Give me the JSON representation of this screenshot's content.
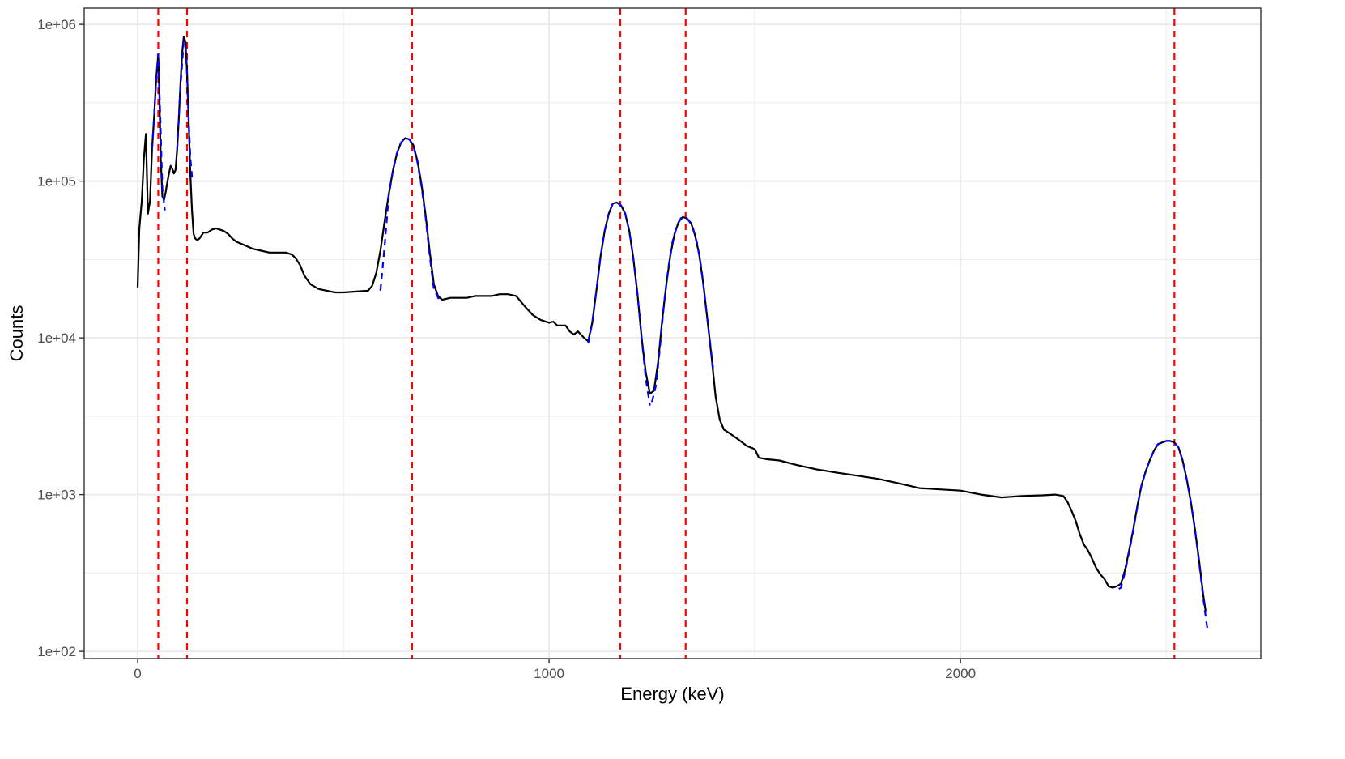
{
  "chart_data": {
    "type": "line",
    "title": "",
    "xlabel": "Energy (keV)",
    "ylabel": "Counts",
    "xlim": [
      -130,
      2730
    ],
    "ylim": [
      90,
      1270000
    ],
    "y_scale": "log10",
    "grid": true,
    "legend": "none",
    "x_ticks": [
      0,
      1000,
      2000
    ],
    "x_tick_labels": [
      "0",
      "1000",
      "2000"
    ],
    "x_minor_ticks": [
      500,
      1500,
      2500
    ],
    "y_ticks": [
      100,
      1000,
      10000,
      100000,
      1000000
    ],
    "y_tick_labels": [
      "1e+02",
      "1e+03",
      "1e+04",
      "1e+05",
      "1e+06"
    ],
    "y_minor_ticks": [
      316.2,
      3162,
      31620,
      316200
    ],
    "colors": {
      "spectrum": "#000000",
      "fits": "#0000ff",
      "peak_lines": "#ff0000",
      "grid": "#ebebeb",
      "panel_border": "#333333"
    },
    "peak_lines": [
      50,
      120,
      667,
      1173,
      1332,
      2520
    ],
    "series": [
      {
        "role": "spectrum",
        "style": "solid",
        "points": [
          [
            0,
            21000
          ],
          [
            4,
            50000
          ],
          [
            10,
            75000
          ],
          [
            15,
            140000
          ],
          [
            20,
            200000
          ],
          [
            25,
            62000
          ],
          [
            30,
            75000
          ],
          [
            35,
            160000
          ],
          [
            40,
            260000
          ],
          [
            45,
            450000
          ],
          [
            50,
            640000
          ],
          [
            53,
            330000
          ],
          [
            56,
            140000
          ],
          [
            60,
            80000
          ],
          [
            64,
            76000
          ],
          [
            68,
            85000
          ],
          [
            72,
            98000
          ],
          [
            76,
            112000
          ],
          [
            80,
            125000
          ],
          [
            84,
            120000
          ],
          [
            88,
            112000
          ],
          [
            92,
            118000
          ],
          [
            96,
            160000
          ],
          [
            100,
            250000
          ],
          [
            104,
            420000
          ],
          [
            108,
            650000
          ],
          [
            112,
            830000
          ],
          [
            116,
            780000
          ],
          [
            120,
            500000
          ],
          [
            124,
            240000
          ],
          [
            128,
            110000
          ],
          [
            132,
            65000
          ],
          [
            136,
            46000
          ],
          [
            140,
            43000
          ],
          [
            145,
            42000
          ],
          [
            150,
            43000
          ],
          [
            160,
            47000
          ],
          [
            170,
            47000
          ],
          [
            180,
            49000
          ],
          [
            190,
            50000
          ],
          [
            200,
            49000
          ],
          [
            210,
            48000
          ],
          [
            220,
            46000
          ],
          [
            230,
            43000
          ],
          [
            240,
            41000
          ],
          [
            260,
            39000
          ],
          [
            280,
            37000
          ],
          [
            300,
            36000
          ],
          [
            320,
            35000
          ],
          [
            340,
            35000
          ],
          [
            360,
            35000
          ],
          [
            375,
            34000
          ],
          [
            385,
            32000
          ],
          [
            395,
            29000
          ],
          [
            405,
            25000
          ],
          [
            420,
            22000
          ],
          [
            440,
            20500
          ],
          [
            460,
            20000
          ],
          [
            480,
            19500
          ],
          [
            500,
            19500
          ],
          [
            560,
            20000
          ],
          [
            570,
            21500
          ],
          [
            580,
            26000
          ],
          [
            590,
            36000
          ],
          [
            600,
            55000
          ],
          [
            610,
            82000
          ],
          [
            620,
            115000
          ],
          [
            630,
            150000
          ],
          [
            640,
            176000
          ],
          [
            650,
            188000
          ],
          [
            660,
            185000
          ],
          [
            670,
            170000
          ],
          [
            680,
            135000
          ],
          [
            690,
            95000
          ],
          [
            700,
            60000
          ],
          [
            710,
            35000
          ],
          [
            720,
            22000
          ],
          [
            730,
            18500
          ],
          [
            740,
            17500
          ],
          [
            760,
            18000
          ],
          [
            780,
            18000
          ],
          [
            800,
            18000
          ],
          [
            820,
            18500
          ],
          [
            840,
            18500
          ],
          [
            860,
            18500
          ],
          [
            880,
            19000
          ],
          [
            900,
            19000
          ],
          [
            920,
            18500
          ],
          [
            940,
            16000
          ],
          [
            960,
            14000
          ],
          [
            980,
            13000
          ],
          [
            1000,
            12500
          ],
          [
            1010,
            12700
          ],
          [
            1020,
            12000
          ],
          [
            1040,
            12000
          ],
          [
            1050,
            11000
          ],
          [
            1060,
            10500
          ],
          [
            1070,
            11000
          ],
          [
            1085,
            10000
          ],
          [
            1095,
            9500
          ],
          [
            1105,
            12500
          ],
          [
            1115,
            20000
          ],
          [
            1125,
            33000
          ],
          [
            1135,
            48000
          ],
          [
            1145,
            62000
          ],
          [
            1155,
            72000
          ],
          [
            1165,
            73000
          ],
          [
            1175,
            70000
          ],
          [
            1185,
            62000
          ],
          [
            1195,
            48000
          ],
          [
            1205,
            32000
          ],
          [
            1215,
            19000
          ],
          [
            1225,
            10000
          ],
          [
            1235,
            6000
          ],
          [
            1245,
            4400
          ],
          [
            1255,
            4600
          ],
          [
            1265,
            7000
          ],
          [
            1275,
            13000
          ],
          [
            1285,
            22000
          ],
          [
            1295,
            34000
          ],
          [
            1305,
            46000
          ],
          [
            1315,
            55000
          ],
          [
            1325,
            59000
          ],
          [
            1335,
            58000
          ],
          [
            1345,
            54000
          ],
          [
            1355,
            45000
          ],
          [
            1365,
            34000
          ],
          [
            1375,
            22000
          ],
          [
            1385,
            13000
          ],
          [
            1395,
            7500
          ],
          [
            1405,
            4200
          ],
          [
            1415,
            3000
          ],
          [
            1425,
            2600
          ],
          [
            1440,
            2450
          ],
          [
            1460,
            2250
          ],
          [
            1480,
            2050
          ],
          [
            1500,
            1950
          ],
          [
            1510,
            1720
          ],
          [
            1530,
            1680
          ],
          [
            1560,
            1650
          ],
          [
            1600,
            1550
          ],
          [
            1650,
            1450
          ],
          [
            1700,
            1380
          ],
          [
            1750,
            1320
          ],
          [
            1800,
            1260
          ],
          [
            1850,
            1180
          ],
          [
            1900,
            1100
          ],
          [
            1950,
            1080
          ],
          [
            2000,
            1060
          ],
          [
            2050,
            1000
          ],
          [
            2100,
            960
          ],
          [
            2150,
            980
          ],
          [
            2200,
            990
          ],
          [
            2230,
            1000
          ],
          [
            2250,
            980
          ],
          [
            2260,
            900
          ],
          [
            2270,
            790
          ],
          [
            2280,
            680
          ],
          [
            2290,
            560
          ],
          [
            2300,
            480
          ],
          [
            2310,
            440
          ],
          [
            2320,
            390
          ],
          [
            2330,
            340
          ],
          [
            2340,
            310
          ],
          [
            2350,
            290
          ],
          [
            2360,
            260
          ],
          [
            2370,
            255
          ],
          [
            2380,
            260
          ],
          [
            2390,
            270
          ],
          [
            2400,
            330
          ],
          [
            2410,
            440
          ],
          [
            2420,
            600
          ],
          [
            2430,
            850
          ],
          [
            2440,
            1150
          ],
          [
            2450,
            1400
          ],
          [
            2460,
            1650
          ],
          [
            2470,
            1900
          ],
          [
            2480,
            2100
          ],
          [
            2490,
            2150
          ],
          [
            2500,
            2200
          ],
          [
            2510,
            2200
          ],
          [
            2520,
            2150
          ],
          [
            2530,
            2000
          ],
          [
            2540,
            1650
          ],
          [
            2550,
            1250
          ],
          [
            2560,
            900
          ],
          [
            2570,
            600
          ],
          [
            2580,
            380
          ],
          [
            2590,
            230
          ],
          [
            2596,
            180
          ]
        ]
      },
      {
        "role": "peak_fit",
        "style": "dashed",
        "points": [
          [
            35,
            160000
          ],
          [
            40,
            260000
          ],
          [
            45,
            450000
          ],
          [
            50,
            650000
          ],
          [
            55,
            250000
          ],
          [
            60,
            90000
          ],
          [
            66,
            65000
          ]
        ]
      },
      {
        "role": "peak_fit",
        "style": "dashed",
        "points": [
          [
            96,
            160000
          ],
          [
            104,
            400000
          ],
          [
            112,
            780000
          ],
          [
            116,
            720000
          ],
          [
            120,
            480000
          ],
          [
            124,
            250000
          ],
          [
            128,
            140000
          ],
          [
            133,
            100000
          ]
        ]
      },
      {
        "role": "peak_fit",
        "style": "dashed",
        "points": [
          [
            590,
            20000
          ],
          [
            600,
            38000
          ],
          [
            610,
            80000
          ],
          [
            620,
            115000
          ],
          [
            630,
            150000
          ],
          [
            640,
            176000
          ],
          [
            650,
            188000
          ],
          [
            660,
            185000
          ],
          [
            670,
            168000
          ],
          [
            680,
            132000
          ],
          [
            690,
            92000
          ],
          [
            700,
            58000
          ],
          [
            710,
            33000
          ],
          [
            720,
            20500
          ],
          [
            735,
            17000
          ]
        ]
      },
      {
        "role": "peak_fit",
        "style": "dashed",
        "points": [
          [
            1095,
            9200
          ],
          [
            1105,
            12500
          ],
          [
            1115,
            20000
          ],
          [
            1125,
            33000
          ],
          [
            1135,
            48000
          ],
          [
            1145,
            62000
          ],
          [
            1155,
            72000
          ],
          [
            1165,
            73000
          ],
          [
            1175,
            70000
          ],
          [
            1185,
            62000
          ],
          [
            1195,
            48000
          ],
          [
            1205,
            32000
          ],
          [
            1215,
            19000
          ],
          [
            1225,
            10000
          ],
          [
            1235,
            5500
          ],
          [
            1245,
            3700
          ]
        ]
      },
      {
        "role": "peak_fit",
        "style": "dashed",
        "points": [
          [
            1250,
            3900
          ],
          [
            1260,
            5000
          ],
          [
            1270,
            9000
          ],
          [
            1280,
            17000
          ],
          [
            1290,
            28000
          ],
          [
            1300,
            41000
          ],
          [
            1310,
            51000
          ],
          [
            1320,
            58000
          ],
          [
            1330,
            59000
          ],
          [
            1340,
            56000
          ],
          [
            1350,
            50000
          ],
          [
            1360,
            40000
          ],
          [
            1370,
            28000
          ],
          [
            1380,
            17000
          ],
          [
            1390,
            10000
          ],
          [
            1400,
            6000
          ]
        ]
      },
      {
        "role": "peak_fit",
        "style": "dashed",
        "points": [
          [
            2385,
            250
          ],
          [
            2390,
            255
          ],
          [
            2400,
            320
          ],
          [
            2410,
            430
          ],
          [
            2420,
            590
          ],
          [
            2430,
            840
          ],
          [
            2440,
            1140
          ],
          [
            2450,
            1400
          ],
          [
            2460,
            1650
          ],
          [
            2470,
            1900
          ],
          [
            2480,
            2100
          ],
          [
            2490,
            2150
          ],
          [
            2500,
            2200
          ],
          [
            2510,
            2200
          ],
          [
            2520,
            2150
          ],
          [
            2530,
            2000
          ],
          [
            2540,
            1650
          ],
          [
            2550,
            1250
          ],
          [
            2560,
            900
          ],
          [
            2570,
            600
          ],
          [
            2580,
            370
          ],
          [
            2590,
            220
          ],
          [
            2597,
            160
          ],
          [
            2600,
            140
          ]
        ]
      }
    ]
  }
}
